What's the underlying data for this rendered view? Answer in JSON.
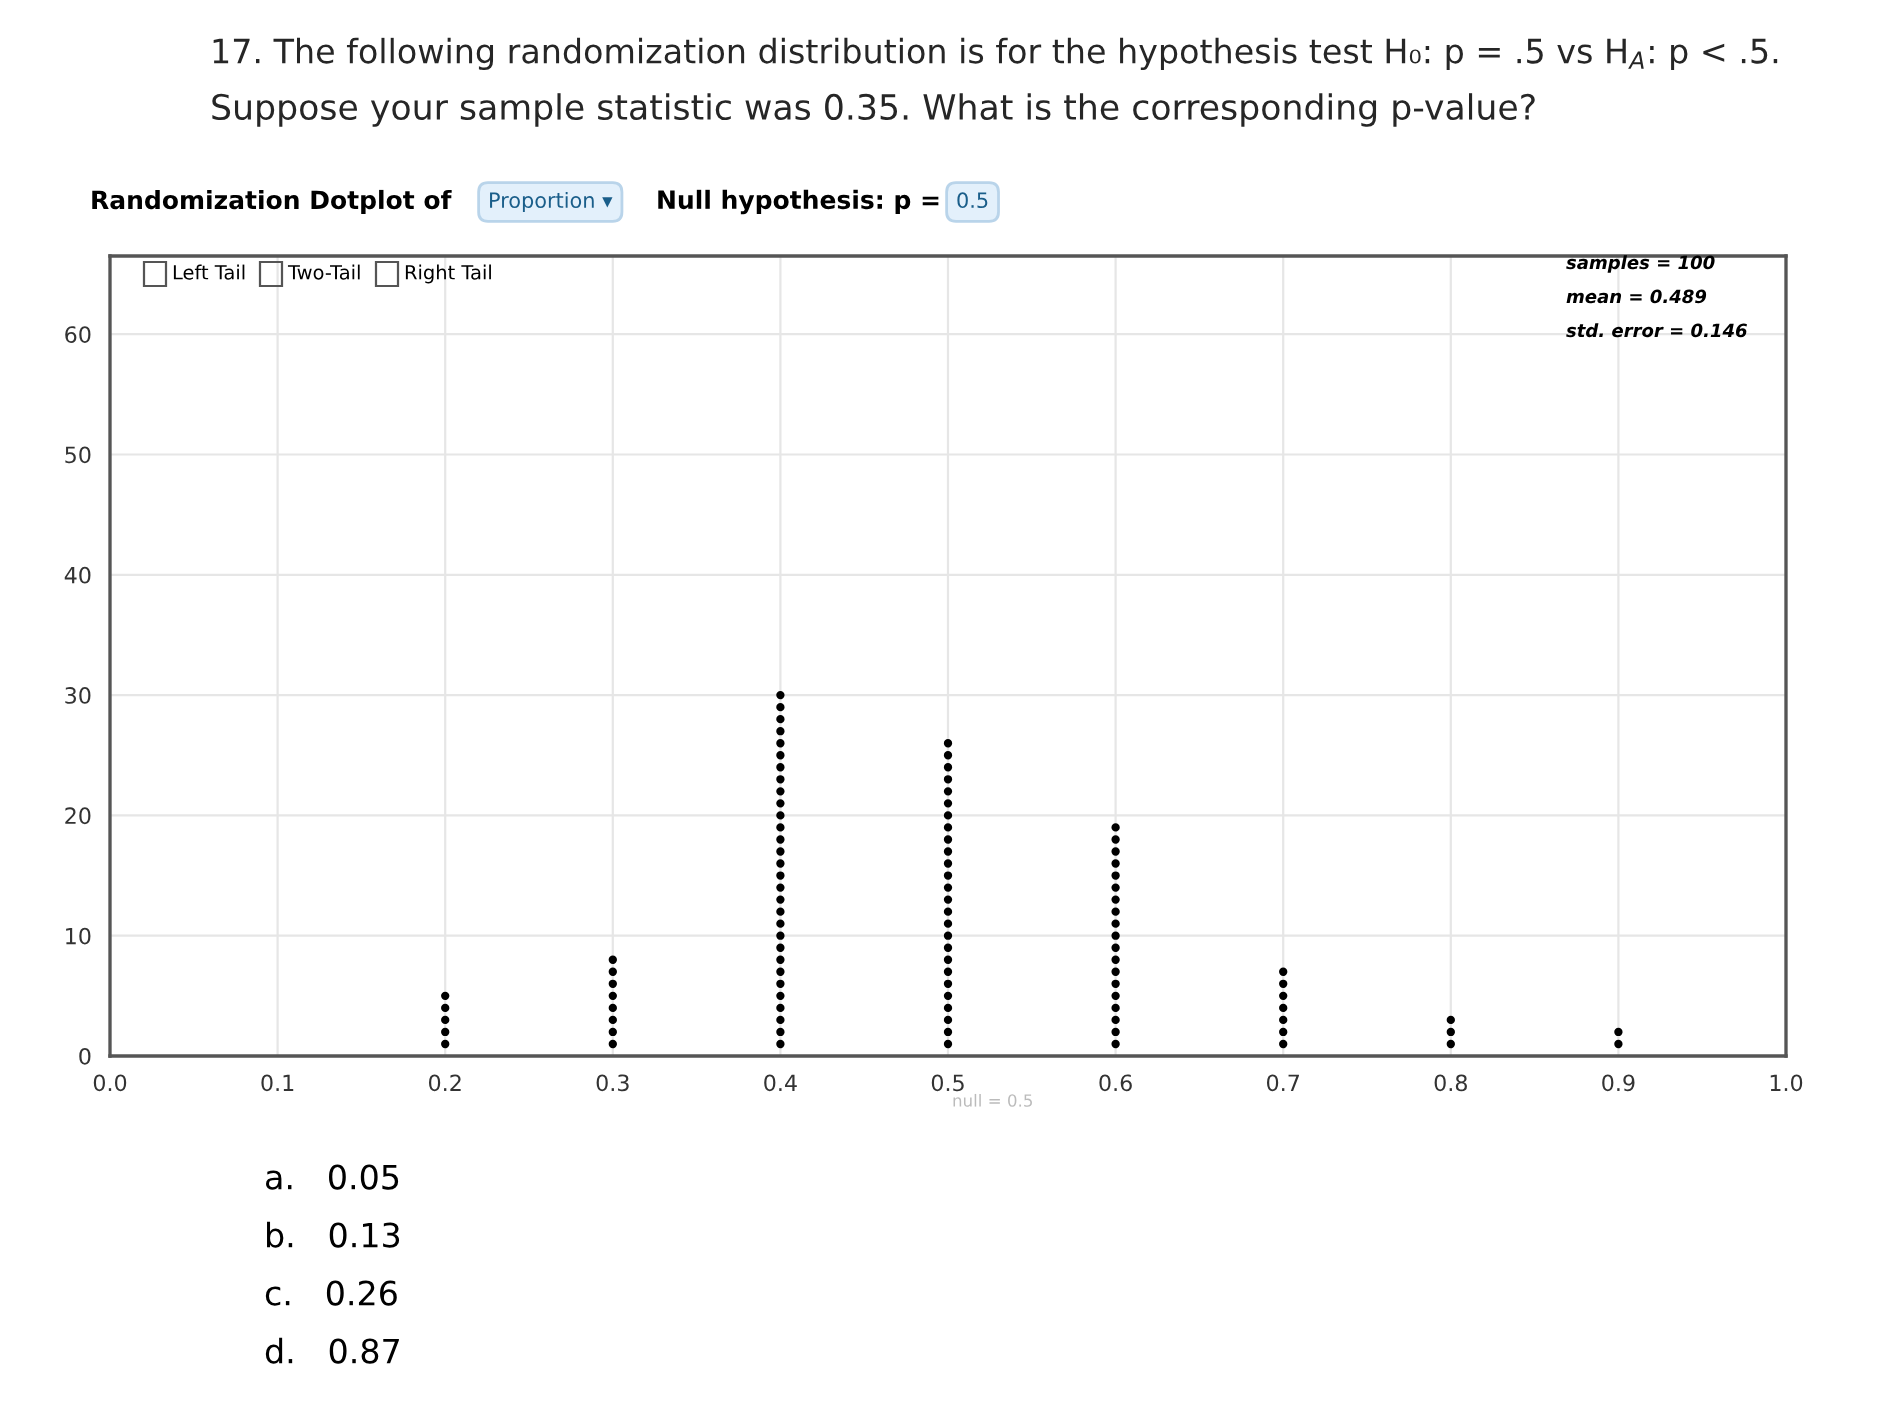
{
  "chart_data": {
    "type": "scatter",
    "title": "17. The following randomization distribution is for the hypothesis test H₀: p = .5 vs H$_{A}$: p < .5.",
    "subtitle": "Suppose your sample statistic was 0.35. What is the corresponding p-value?",
    "series": [
      {
        "color": "#000000",
        "x": [
          0.2,
          0.2,
          0.2,
          0.2,
          0.2
        ],
        "values": [
          1,
          2,
          3,
          4,
          5
        ]
      },
      {
        "color": "#000000",
        "x": [
          0.3,
          0.3,
          0.3,
          0.3,
          0.3,
          0.3,
          0.3,
          0.3
        ],
        "values": [
          1,
          2,
          3,
          4,
          5,
          6,
          7,
          8
        ]
      },
      {
        "color": "#000000",
        "x": [
          0.4,
          0.4,
          0.4,
          0.4,
          0.4,
          0.4,
          0.4,
          0.4,
          0.4,
          0.4,
          0.4,
          0.4,
          0.4,
          0.4,
          0.4,
          0.4,
          0.4,
          0.4,
          0.4,
          0.4,
          0.4,
          0.4,
          0.4,
          0.4,
          0.4,
          0.4,
          0.4,
          0.4,
          0.4,
          0.4
        ],
        "values": [
          1,
          2,
          3,
          4,
          5,
          6,
          7,
          8,
          9,
          10,
          11,
          12,
          13,
          14,
          15,
          16,
          17,
          18,
          19,
          20,
          21,
          22,
          23,
          24,
          25,
          26,
          27,
          28,
          29,
          30
        ]
      },
      {
        "color": "#000000",
        "x": [
          0.5,
          0.5,
          0.5,
          0.5,
          0.5,
          0.5,
          0.5,
          0.5,
          0.5,
          0.5,
          0.5,
          0.5,
          0.5,
          0.5,
          0.5,
          0.5,
          0.5,
          0.5,
          0.5,
          0.5,
          0.5,
          0.5,
          0.5,
          0.5,
          0.5,
          0.5
        ],
        "values": [
          1,
          2,
          3,
          4,
          5,
          6,
          7,
          8,
          9,
          10,
          11,
          12,
          13,
          14,
          15,
          16,
          17,
          18,
          19,
          20,
          21,
          22,
          23,
          24,
          25,
          26
        ]
      },
      {
        "color": "#000000",
        "x": [
          0.6,
          0.6,
          0.6,
          0.6,
          0.6,
          0.6,
          0.6,
          0.6,
          0.6,
          0.6,
          0.6,
          0.6,
          0.6,
          0.6,
          0.6,
          0.6,
          0.6,
          0.6,
          0.6
        ],
        "values": [
          1,
          2,
          3,
          4,
          5,
          6,
          7,
          8,
          9,
          10,
          11,
          12,
          13,
          14,
          15,
          16,
          17,
          18,
          19
        ]
      },
      {
        "color": "#000000",
        "x": [
          0.7,
          0.7,
          0.7,
          0.7,
          0.7,
          0.7,
          0.7
        ],
        "values": [
          1,
          2,
          3,
          4,
          5,
          6,
          7
        ]
      },
      {
        "color": "#000000",
        "x": [
          0.8,
          0.8,
          0.8
        ],
        "values": [
          1,
          2,
          3
        ]
      },
      {
        "color": "#000000",
        "x": [
          0.9,
          0.9
        ],
        "values": [
          1,
          2
        ]
      }
    ],
    "xlim": [
      0.0,
      1.0
    ],
    "xticks": [
      {
        "value": 0.0,
        "label": "0.0"
      },
      0.1,
      0.2,
      0.3,
      0.4,
      {
        "value": 0.5,
        "label": "0.5"
      },
      0.6,
      0.7,
      0.8,
      0.9,
      {
        "value": 1.0,
        "label": "1.0"
      }
    ],
    "ylim": [
      0,
      66.5
    ],
    "yticks": [
      0,
      10,
      20,
      30,
      40,
      50,
      60
    ],
    "grid": true,
    "marker": "circle",
    "annotations": [
      "Randomization Dotplot of",
      "Proportion ▾",
      "Null hypothesis: p =",
      "0.5",
      "Left Tail",
      "Two-Tail",
      "Right Tail",
      "samples = 100",
      "mean = 0.489",
      "std. error = 0.146",
      "null = 0.5",
      "a.   0.05",
      "b.   0.13",
      "c.   0.26",
      "d.   0.87"
    ]
  }
}
